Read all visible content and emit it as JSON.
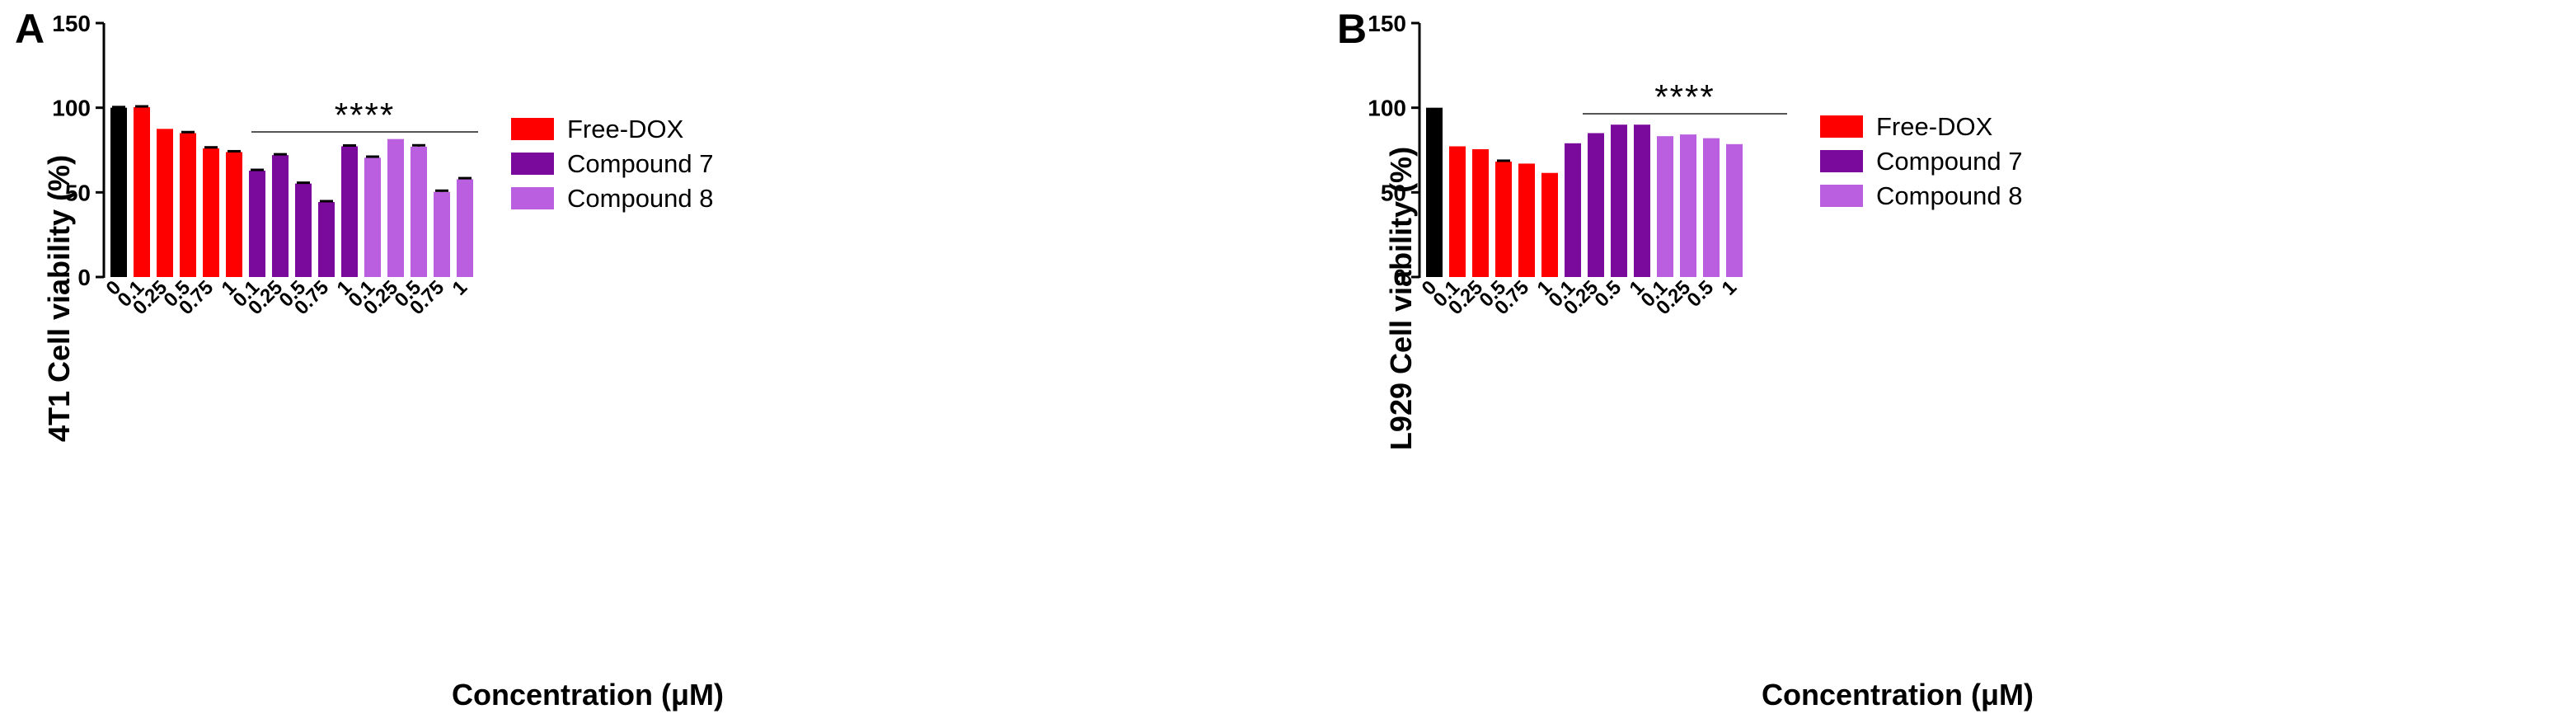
{
  "colors": {
    "control": "#000000",
    "free_dox": "#ff0000",
    "compound7": "#7a0a9c",
    "compound8": "#b95fe0"
  },
  "chart_data": [
    {
      "type": "bar",
      "panel_label": "A",
      "title": "",
      "ylabel": "4T1 Cell viability (%)",
      "xlabel": "Concentration (μM)",
      "ylim": [
        0,
        150
      ],
      "yticks": [
        "0",
        "50",
        "100",
        "150"
      ],
      "legend": [
        "Free-DOX",
        "Compound 7",
        "Compound 8"
      ],
      "legend_position": "right",
      "significance": "****",
      "significance_span": [
        6,
        15
      ],
      "bars": [
        {
          "label": "0",
          "value": 100,
          "error": 0.4,
          "group": "control"
        },
        {
          "label": "0.1",
          "value": 100.3,
          "error": 0.5,
          "group": "free_dox"
        },
        {
          "label": "0.25",
          "value": 87.5,
          "error": 0,
          "group": "free_dox"
        },
        {
          "label": "0.5",
          "value": 85,
          "error": 0.6,
          "group": "free_dox"
        },
        {
          "label": "0.75",
          "value": 76,
          "error": 0.6,
          "group": "free_dox"
        },
        {
          "label": "1",
          "value": 73.8,
          "error": 0.5,
          "group": "free_dox"
        },
        {
          "label": "0.1",
          "value": 62.8,
          "error": 0.5,
          "group": "compound7"
        },
        {
          "label": "0.25",
          "value": 72,
          "error": 0.5,
          "group": "compound7"
        },
        {
          "label": "0.5",
          "value": 55.2,
          "error": 0.5,
          "group": "compound7"
        },
        {
          "label": "0.75",
          "value": 44.3,
          "error": 0.5,
          "group": "compound7"
        },
        {
          "label": "1",
          "value": 77.2,
          "error": 0.5,
          "group": "compound7"
        },
        {
          "label": "0.1",
          "value": 70.5,
          "error": 0.6,
          "group": "compound8"
        },
        {
          "label": "0.25",
          "value": 81.5,
          "error": 0,
          "group": "compound8"
        },
        {
          "label": "0.5",
          "value": 77,
          "error": 0.8,
          "group": "compound8"
        },
        {
          "label": "0.75",
          "value": 50.3,
          "error": 0.7,
          "group": "compound8"
        },
        {
          "label": "1",
          "value": 57.8,
          "error": 0.6,
          "group": "compound8"
        }
      ]
    },
    {
      "type": "bar",
      "panel_label": "B",
      "title": "",
      "ylabel": "L929 Cell viability (%)",
      "xlabel": "Concentration (μM)",
      "ylim": [
        0,
        150
      ],
      "yticks": [
        "0",
        "50",
        "100",
        "150"
      ],
      "legend": [
        "Free-DOX",
        "Compound 7",
        "Compound 8"
      ],
      "legend_position": "right",
      "significance": "****",
      "significance_span": [
        6,
        14
      ],
      "bars": [
        {
          "label": "0",
          "value": 100,
          "error": 0,
          "group": "control"
        },
        {
          "label": "0.1",
          "value": 77.2,
          "error": 0,
          "group": "free_dox"
        },
        {
          "label": "0.25",
          "value": 75.5,
          "error": 0,
          "group": "free_dox"
        },
        {
          "label": "0.5",
          "value": 68.2,
          "error": 0.5,
          "group": "free_dox"
        },
        {
          "label": "0.75",
          "value": 67,
          "error": 0,
          "group": "free_dox"
        },
        {
          "label": "1",
          "value": 61.5,
          "error": 0,
          "group": "free_dox"
        },
        {
          "label": "0.1",
          "value": 79,
          "error": 0,
          "group": "compound7"
        },
        {
          "label": "0.25",
          "value": 85,
          "error": 0,
          "group": "compound7"
        },
        {
          "label": "0.5",
          "value": 90,
          "error": 0,
          "group": "compound7"
        },
        {
          "label": "1",
          "value": 90,
          "error": 0,
          "group": "compound7"
        },
        {
          "label": "0.1",
          "value": 83.2,
          "error": 0,
          "group": "compound8"
        },
        {
          "label": "0.25",
          "value": 84.2,
          "error": 0,
          "group": "compound8"
        },
        {
          "label": "0.5",
          "value": 82,
          "error": 0,
          "group": "compound8"
        },
        {
          "label": "1",
          "value": 78.5,
          "error": 0,
          "group": "compound8"
        }
      ]
    }
  ]
}
